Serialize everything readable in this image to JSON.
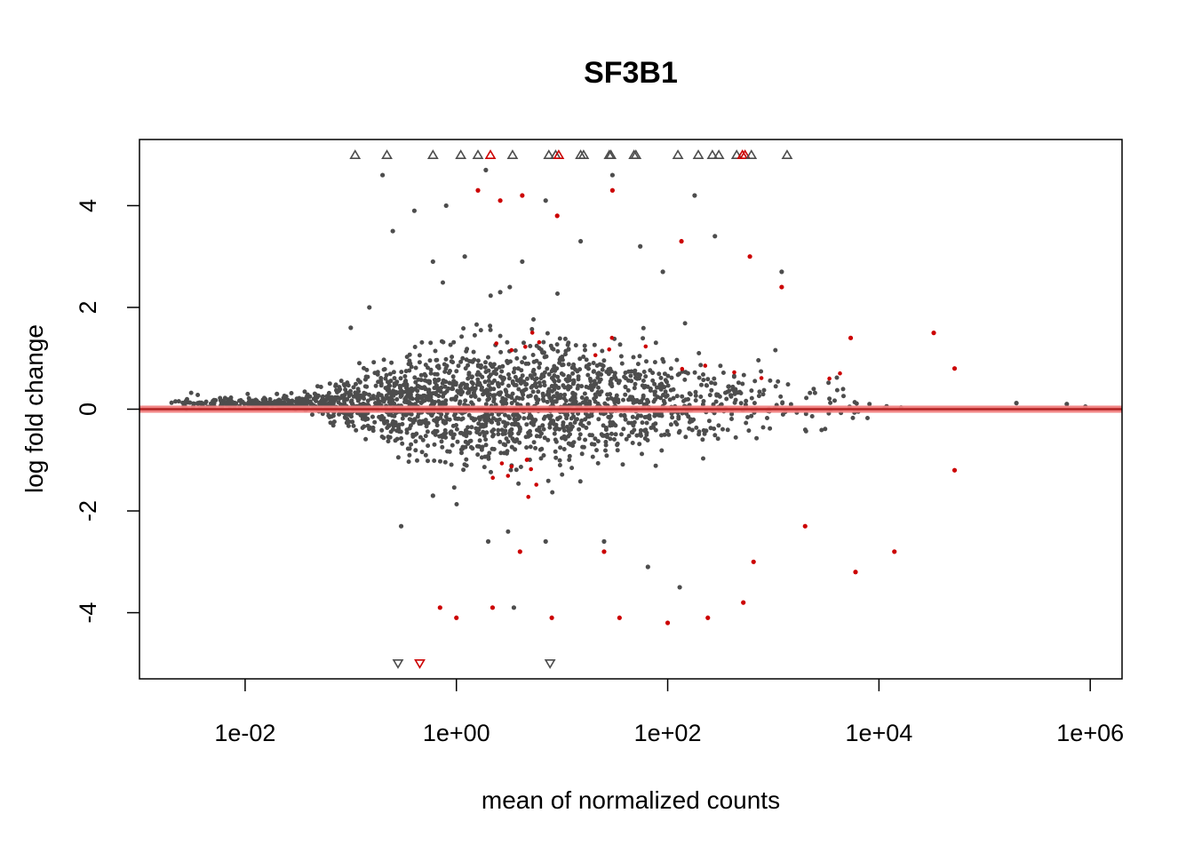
{
  "chart_data": {
    "type": "scatter",
    "title": "SF3B1",
    "xlabel": "mean of normalized counts",
    "ylabel": "log fold change",
    "x_scale": "log10",
    "xlim": [
      0.001,
      2000000
    ],
    "ylim": [
      -5.3,
      5.3
    ],
    "x_ticks": [
      {
        "value": 0.01,
        "label": "1e-02"
      },
      {
        "value": 1,
        "label": "1e+00"
      },
      {
        "value": 100,
        "label": "1e+02"
      },
      {
        "value": 10000,
        "label": "1e+04"
      },
      {
        "value": 1000000,
        "label": "1e+06"
      }
    ],
    "y_ticks": [
      {
        "value": -4,
        "label": "-4"
      },
      {
        "value": -2,
        "label": "-2"
      },
      {
        "value": 0,
        "label": "0"
      },
      {
        "value": 2,
        "label": "2"
      },
      {
        "value": 4,
        "label": "4"
      }
    ],
    "grid": false,
    "reference_line": {
      "y": 0,
      "color": "#f08080"
    },
    "colors": {
      "non_significant": "#4d4d4d",
      "significant": "#cc0000"
    },
    "point_count_approx": 30000,
    "series": [
      {
        "significant": false,
        "points": [
          [
            0.003,
            0.13
          ],
          [
            0.006,
            0.12
          ],
          [
            0.012,
            0.12
          ],
          [
            0.02,
            0.3
          ],
          [
            0.1,
            1.6
          ],
          [
            0.15,
            2.0
          ],
          [
            0.2,
            4.6
          ],
          [
            0.25,
            3.5
          ],
          [
            0.4,
            3.9
          ],
          [
            0.6,
            2.9
          ],
          [
            0.8,
            4.0
          ],
          [
            1.2,
            3.0
          ],
          [
            1.9,
            4.7
          ],
          [
            2.6,
            2.3
          ],
          [
            3.2,
            2.4
          ],
          [
            4.2,
            2.9
          ],
          [
            7.0,
            4.1
          ],
          [
            15,
            3.3
          ],
          [
            30,
            4.6
          ],
          [
            55,
            3.2
          ],
          [
            90,
            2.7
          ],
          [
            180,
            4.2
          ],
          [
            280,
            3.4
          ],
          [
            1200,
            2.7
          ],
          [
            0.3,
            -2.3
          ],
          [
            0.6,
            -1.7
          ],
          [
            2.0,
            -2.6
          ],
          [
            3.5,
            -3.9
          ],
          [
            7.0,
            -2.6
          ],
          [
            25,
            -2.6
          ],
          [
            65,
            -3.1
          ],
          [
            130,
            -3.5
          ],
          [
            900000,
            0.05
          ],
          [
            600000,
            0.1
          ],
          [
            200000,
            0.12
          ]
        ]
      },
      {
        "significant": true,
        "points": [
          [
            1.6,
            4.3
          ],
          [
            2.6,
            4.1
          ],
          [
            4.2,
            4.2
          ],
          [
            9.0,
            3.8
          ],
          [
            30,
            4.3
          ],
          [
            135,
            3.3
          ],
          [
            600,
            3.0
          ],
          [
            1200,
            2.4
          ],
          [
            5400,
            1.4
          ],
          [
            33000,
            1.5
          ],
          [
            52000,
            0.8
          ],
          [
            0.7,
            -3.9
          ],
          [
            1.0,
            -4.1
          ],
          [
            2.2,
            -3.9
          ],
          [
            8.0,
            -4.1
          ],
          [
            35,
            -4.1
          ],
          [
            100,
            -4.2
          ],
          [
            240,
            -4.1
          ],
          [
            520,
            -3.8
          ],
          [
            6000,
            -3.2
          ],
          [
            14000,
            -2.8
          ],
          [
            52000,
            -1.2
          ],
          [
            4.0,
            -2.8
          ],
          [
            25,
            -2.8
          ],
          [
            650,
            -3.0
          ],
          [
            2000,
            -2.3
          ]
        ]
      }
    ],
    "outliers_up": [
      {
        "x": 0.11,
        "significant": false
      },
      {
        "x": 0.22,
        "significant": false
      },
      {
        "x": 0.6,
        "significant": false
      },
      {
        "x": 1.1,
        "significant": false
      },
      {
        "x": 1.6,
        "significant": false
      },
      {
        "x": 2.1,
        "significant": true
      },
      {
        "x": 3.4,
        "significant": false
      },
      {
        "x": 7.5,
        "significant": false
      },
      {
        "x": 8.7,
        "significant": false
      },
      {
        "x": 9.3,
        "significant": true
      },
      {
        "x": 15,
        "significant": false
      },
      {
        "x": 16,
        "significant": false
      },
      {
        "x": 28,
        "significant": false
      },
      {
        "x": 29,
        "significant": false
      },
      {
        "x": 48,
        "significant": false
      },
      {
        "x": 50,
        "significant": false
      },
      {
        "x": 125,
        "significant": false
      },
      {
        "x": 195,
        "significant": false
      },
      {
        "x": 265,
        "significant": false
      },
      {
        "x": 305,
        "significant": false
      },
      {
        "x": 450,
        "significant": false
      },
      {
        "x": 510,
        "significant": true
      },
      {
        "x": 540,
        "significant": true
      },
      {
        "x": 620,
        "significant": false
      },
      {
        "x": 1350,
        "significant": false
      }
    ],
    "outliers_down": [
      {
        "x": 0.28,
        "significant": false
      },
      {
        "x": 0.45,
        "significant": true
      },
      {
        "x": 7.7,
        "significant": false
      }
    ]
  }
}
